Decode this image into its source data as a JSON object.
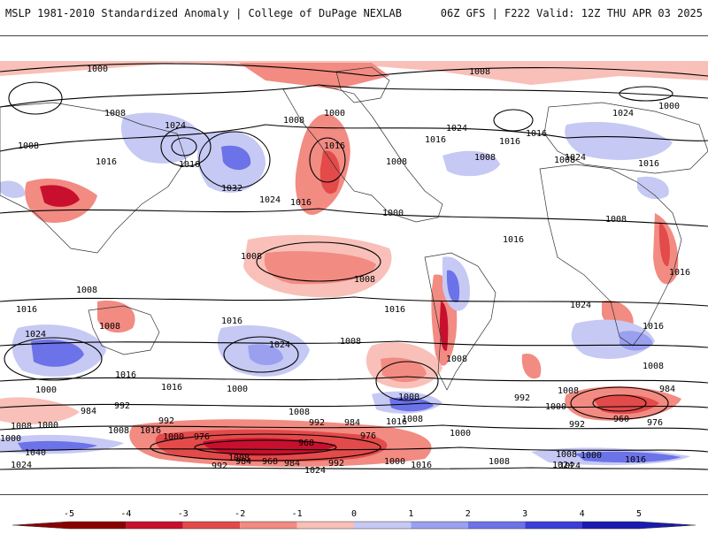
{
  "header": {
    "title_left": "MSLP 1981-2010 Standardized Anomaly | College of DuPage NEXLAB",
    "title_right": "06Z GFS | F222 Valid: 12Z THU APR 03 2025"
  },
  "colors": {
    "neg5": "#8b0000",
    "neg4": "#c8102e",
    "neg3": "#e34a4a",
    "neg2": "#f28b82",
    "neg1": "#f8c0b8",
    "zero": "#ffffff",
    "pos1": "#c6c9f3",
    "pos2": "#9a9ff0",
    "pos3": "#6c72e8",
    "pos4": "#3b3ed8",
    "pos5": "#1a1ab0"
  },
  "colorbar": {
    "ticks": [
      "-5",
      "-4",
      "-3",
      "-2",
      "-1",
      "0",
      "1",
      "2",
      "3",
      "4",
      "5"
    ]
  },
  "isobar_labels": [
    {
      "text": "1000"
    },
    {
      "text": "1008"
    },
    {
      "text": "1000"
    },
    {
      "text": "1008"
    },
    {
      "text": "1016"
    },
    {
      "text": "1008"
    },
    {
      "text": "1016"
    },
    {
      "text": "1024"
    },
    {
      "text": "1016"
    },
    {
      "text": "1032"
    },
    {
      "text": "1024"
    },
    {
      "text": "1016"
    },
    {
      "text": "1008"
    },
    {
      "text": "1016"
    },
    {
      "text": "1008"
    },
    {
      "text": "1000"
    },
    {
      "text": "1008"
    },
    {
      "text": "1016"
    },
    {
      "text": "1024"
    },
    {
      "text": "1016"
    },
    {
      "text": "1008"
    },
    {
      "text": "1016"
    },
    {
      "text": "1008"
    },
    {
      "text": "1016"
    },
    {
      "text": "1024"
    },
    {
      "text": "1000"
    },
    {
      "text": "1024"
    },
    {
      "text": "1016"
    },
    {
      "text": "1008"
    },
    {
      "text": "1008"
    },
    {
      "text": "1016"
    },
    {
      "text": "1008"
    },
    {
      "text": "1008"
    },
    {
      "text": "1016"
    },
    {
      "text": "1024"
    },
    {
      "text": "1016"
    },
    {
      "text": "1024"
    },
    {
      "text": "1008"
    },
    {
      "text": "1016"
    },
    {
      "text": "1000"
    },
    {
      "text": "992"
    },
    {
      "text": "984"
    },
    {
      "text": "1000"
    },
    {
      "text": "1040"
    },
    {
      "text": "1016"
    },
    {
      "text": "1008"
    },
    {
      "text": "1016"
    },
    {
      "text": "1000"
    },
    {
      "text": "976"
    },
    {
      "text": "992"
    },
    {
      "text": "1008"
    },
    {
      "text": "1024"
    },
    {
      "text": "1016"
    },
    {
      "text": "1008"
    },
    {
      "text": "1000"
    },
    {
      "text": "992"
    },
    {
      "text": "984"
    },
    {
      "text": "968"
    },
    {
      "text": "976"
    },
    {
      "text": "992"
    },
    {
      "text": "984"
    },
    {
      "text": "968"
    },
    {
      "text": "984"
    },
    {
      "text": "992"
    },
    {
      "text": "1000"
    },
    {
      "text": "1008"
    },
    {
      "text": "1016"
    },
    {
      "text": "1024"
    },
    {
      "text": "1008"
    },
    {
      "text": "1000"
    },
    {
      "text": "1000"
    },
    {
      "text": "1008"
    },
    {
      "text": "992"
    },
    {
      "text": "1008"
    },
    {
      "text": "1000"
    },
    {
      "text": "992"
    },
    {
      "text": "1008"
    },
    {
      "text": "1016"
    },
    {
      "text": "1024"
    },
    {
      "text": "984"
    },
    {
      "text": "960"
    },
    {
      "text": "976"
    },
    {
      "text": "1000"
    },
    {
      "text": "1016"
    },
    {
      "text": "1008"
    },
    {
      "text": "1024"
    },
    {
      "text": "1000"
    },
    {
      "text": "1008"
    },
    {
      "text": "1024"
    }
  ]
}
